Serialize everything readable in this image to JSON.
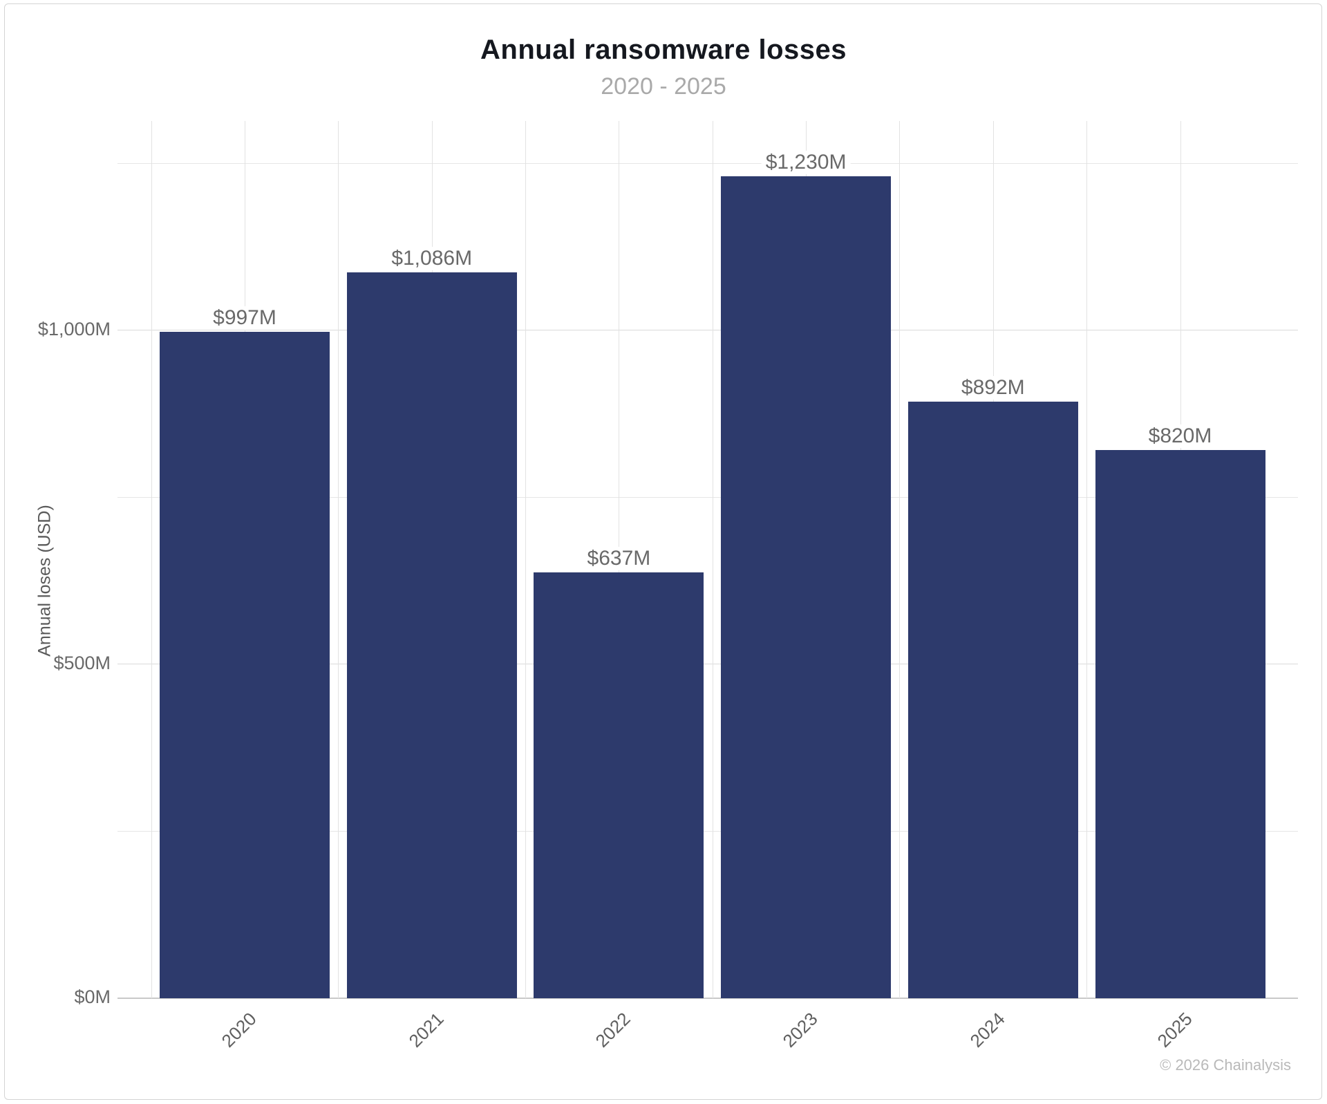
{
  "page": {
    "footer": "© 2026 Chainalysis"
  },
  "chart_data": {
    "type": "bar",
    "title": "Annual ransomware losses",
    "subtitle": "2020 - 2025",
    "categories": [
      "2020",
      "2021",
      "2022",
      "2023",
      "2024",
      "2025"
    ],
    "values": [
      997,
      1086,
      637,
      1230,
      892,
      820
    ],
    "value_labels": [
      "$997M",
      "$1,086M",
      "$637M",
      "$1,230M",
      "$892M",
      "$820M"
    ],
    "xlabel": "",
    "ylabel": "Annual loses (USD)",
    "ylim": [
      0,
      1300
    ],
    "y_ticks": [
      {
        "value": 0,
        "label": "$0M"
      },
      {
        "value": 500,
        "label": "$500M"
      },
      {
        "value": 1000,
        "label": "$1,000M"
      }
    ],
    "y_minor_gridlines": [
      250,
      750,
      1250
    ],
    "grid": true,
    "legend_position": "none",
    "bar_color": "#2d3a6c"
  },
  "colors": {
    "bar": "#2d3a6c",
    "title": "#15181f",
    "subtitle": "#a9a9a9",
    "axis_label": "#696969",
    "gridline_minor": "#e6e6e6",
    "gridline_major": "#d9d9d9",
    "baseline": "#c9c9c9",
    "footer": "#b9b9b9",
    "card_border": "#d4d4d4",
    "background": "#ffffff"
  }
}
